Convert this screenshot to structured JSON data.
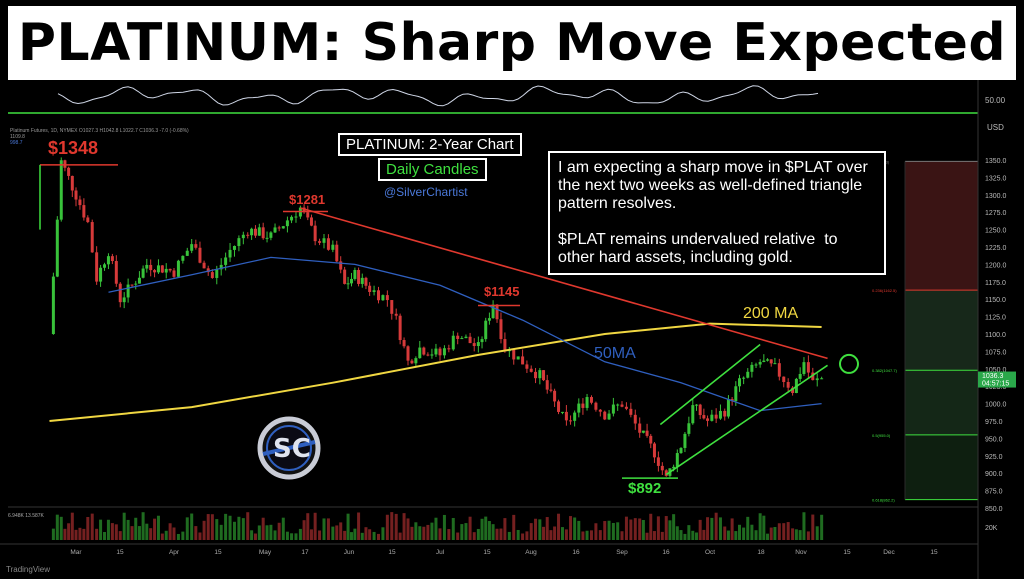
{
  "title": "PLATINUM: Sharp Move Expected",
  "header_small": {
    "instrument": "Platinum Futures, 1D, NYMEX",
    "ohlc": "O1027.3  H1042.8  L1022.7  C1036.3  -7.0 (-0.68%)",
    "v1": "1109.8",
    "v2": "998.7"
  },
  "chart_title": "PLATINUM: 2-Year Chart",
  "candles_label": "Daily Candles",
  "handle": "@SilverChartist",
  "commentary": "I am expecting a sharp move in $PLAT over the next two weeks as well-defined triangle pattern resolves.\n\n$PLAT remains undervalued relative  to other hard assets, including gold.",
  "annotations": {
    "high_1348": "$1348",
    "high_1281": "$1281",
    "high_1145": "$1145",
    "low_892": "$892",
    "ma200": "200 MA",
    "ma50": "50MA"
  },
  "colors": {
    "red": "#e0382e",
    "green": "#3fe03f",
    "yellow": "#f0d742",
    "blue": "#2f5fbf",
    "down_candle": "#d63a3a",
    "up_candle": "#38c23a"
  },
  "footer_brand": "TradingView",
  "chart_data": {
    "type": "candlestick",
    "title": "PLATINUM: 2-Year Chart",
    "y_axis": {
      "ticks": [
        850,
        875,
        900,
        925,
        950,
        975,
        1000,
        1025,
        1050,
        1075,
        1100,
        1125,
        1150,
        1175,
        1200,
        1225,
        1250,
        1275,
        1300,
        1325,
        1350
      ],
      "range": [
        850,
        1375
      ],
      "unit": "USD"
    },
    "x_axis": {
      "ticks": [
        "Mar",
        "15",
        "Apr",
        "15",
        "May",
        "17",
        "Jun",
        "15",
        "Jul",
        "15",
        "Aug",
        "16",
        "Sep",
        "16",
        "Oct",
        "18",
        "Nov",
        "15",
        "Dec",
        "15"
      ]
    },
    "price_path": [
      {
        "date": "Feb 20",
        "close": 1100
      },
      {
        "date": "Feb 24",
        "close": 1348
      },
      {
        "date": "Mar 1",
        "close": 1300
      },
      {
        "date": "Mar 5",
        "close": 1260
      },
      {
        "date": "Mar 8",
        "close": 1180
      },
      {
        "date": "Mar 12",
        "close": 1220
      },
      {
        "date": "Mar 16",
        "close": 1150
      },
      {
        "date": "Mar 20",
        "close": 1170
      },
      {
        "date": "Mar 25",
        "close": 1200
      },
      {
        "date": "Apr 1",
        "close": 1190
      },
      {
        "date": "Apr 7",
        "close": 1230
      },
      {
        "date": "Apr 14",
        "close": 1180
      },
      {
        "date": "Apr 20",
        "close": 1220
      },
      {
        "date": "Apr 26",
        "close": 1250
      },
      {
        "date": "May 3",
        "close": 1240
      },
      {
        "date": "May 10",
        "close": 1270
      },
      {
        "date": "May 13",
        "close": 1281
      },
      {
        "date": "May 18",
        "close": 1240
      },
      {
        "date": "May 24",
        "close": 1220
      },
      {
        "date": "May 28",
        "close": 1170
      },
      {
        "date": "Jun 3",
        "close": 1185
      },
      {
        "date": "Jun 8",
        "close": 1165
      },
      {
        "date": "Jun 14",
        "close": 1150
      },
      {
        "date": "Jun 17",
        "close": 1120
      },
      {
        "date": "Jun 21",
        "close": 1060
      },
      {
        "date": "Jun 25",
        "close": 1080
      },
      {
        "date": "Jul 1",
        "close": 1070
      },
      {
        "date": "Jul 7",
        "close": 1100
      },
      {
        "date": "Jul 14",
        "close": 1080
      },
      {
        "date": "Jul 19",
        "close": 1145
      },
      {
        "date": "Jul 23",
        "close": 1080
      },
      {
        "date": "Jul 29",
        "close": 1060
      },
      {
        "date": "Aug 4",
        "close": 1040
      },
      {
        "date": "Aug 9",
        "close": 1000
      },
      {
        "date": "Aug 13",
        "close": 970
      },
      {
        "date": "Aug 20",
        "close": 1010
      },
      {
        "date": "Aug 26",
        "close": 985
      },
      {
        "date": "Sep 1",
        "close": 1000
      },
      {
        "date": "Sep 7",
        "close": 960
      },
      {
        "date": "Sep 12",
        "close": 930
      },
      {
        "date": "Sep 16",
        "close": 892
      },
      {
        "date": "Sep 21",
        "close": 940
      },
      {
        "date": "Sep 25",
        "close": 995
      },
      {
        "date": "Sep 30",
        "close": 975
      },
      {
        "date": "Oct 6",
        "close": 990
      },
      {
        "date": "Oct 11",
        "close": 1030
      },
      {
        "date": "Oct 18",
        "close": 1060
      },
      {
        "date": "Oct 23",
        "close": 1050
      },
      {
        "date": "Oct 29",
        "close": 1020
      },
      {
        "date": "Nov 2",
        "close": 1060
      },
      {
        "date": "Nov 5",
        "close": 1030
      },
      {
        "date": "Nov 8",
        "close": 1036
      }
    ],
    "ma200": [
      {
        "date": "Feb 20",
        "value": 975
      },
      {
        "date": "Apr 7",
        "value": 995
      },
      {
        "date": "May 24",
        "value": 1030
      },
      {
        "date": "Jul 14",
        "value": 1070
      },
      {
        "date": "Aug 26",
        "value": 1100
      },
      {
        "date": "Oct 1",
        "value": 1115
      },
      {
        "date": "Nov 8",
        "value": 1110
      }
    ],
    "ma50": [
      {
        "date": "Mar 12",
        "value": 1160
      },
      {
        "date": "Apr 7",
        "value": 1185
      },
      {
        "date": "May 3",
        "value": 1210
      },
      {
        "date": "Jun 3",
        "value": 1200
      },
      {
        "date": "Jul 1",
        "value": 1170
      },
      {
        "date": "Jul 29",
        "value": 1120
      },
      {
        "date": "Aug 26",
        "value": 1060
      },
      {
        "date": "Sep 21",
        "value": 1030
      },
      {
        "date": "Oct 18",
        "value": 990
      },
      {
        "date": "Nov 8",
        "value": 1000
      }
    ],
    "trendlines": [
      {
        "name": "resistance",
        "from": {
          "date": "May 13",
          "value": 1281
        },
        "to": {
          "date": "Nov 10",
          "value": 1065
        }
      },
      {
        "name": "channel-lower",
        "from": {
          "date": "Sep 16",
          "value": 898
        },
        "to": {
          "date": "Nov 10",
          "value": 1055
        }
      },
      {
        "name": "channel-upper",
        "from": {
          "date": "Sep 14",
          "value": 970
        },
        "to": {
          "date": "Oct 18",
          "value": 1085
        }
      }
    ],
    "fib_levels": [
      {
        "label": "0(1348.3)",
        "value": 1348
      },
      {
        "label": "0.236(1162.5)",
        "value": 1163
      },
      {
        "label": "0.382(1047.7)",
        "value": 1048
      },
      {
        "label": "0.5(955.0)",
        "value": 955
      },
      {
        "label": "0.618(862.2)",
        "value": 862
      }
    ],
    "last_price": {
      "value": "1036.3",
      "countdown": "04:57:15"
    },
    "oscillator": {
      "axis_label": "50.00"
    },
    "volume": {
      "labels": [
        "6.948K",
        "13.587K"
      ],
      "axis_label": "20K"
    }
  }
}
